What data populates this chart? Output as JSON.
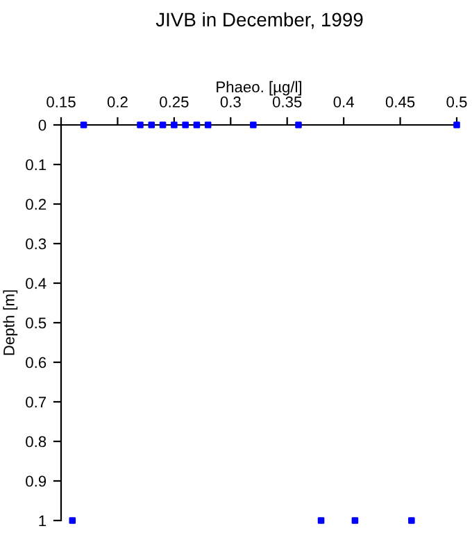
{
  "chart_data": {
    "type": "scatter",
    "title": "JIVB in December, 1999",
    "xlabel": "Phaeo. [µg/l]",
    "ylabel": "Depth [m]",
    "x": [
      0.17,
      0.22,
      0.23,
      0.24,
      0.25,
      0.26,
      0.27,
      0.28,
      0.32,
      0.36,
      0.5,
      0.16,
      0.38,
      0.41,
      0.46
    ],
    "values": [
      0,
      0,
      0,
      0,
      0,
      0,
      0,
      0,
      0,
      0,
      0,
      1,
      1,
      1,
      1
    ],
    "color": "#0000ff",
    "marker": "square",
    "xlim": [
      0.15,
      0.5
    ],
    "xticks": [
      0.15,
      0.2,
      0.25,
      0.3,
      0.35,
      0.4,
      0.45,
      0.5
    ],
    "ylim": [
      1,
      0
    ],
    "yticks": [
      0,
      0.1,
      0.2,
      0.3,
      0.4,
      0.5,
      0.6,
      0.7,
      0.8,
      0.9,
      1
    ],
    "grid": false,
    "legend": false
  }
}
